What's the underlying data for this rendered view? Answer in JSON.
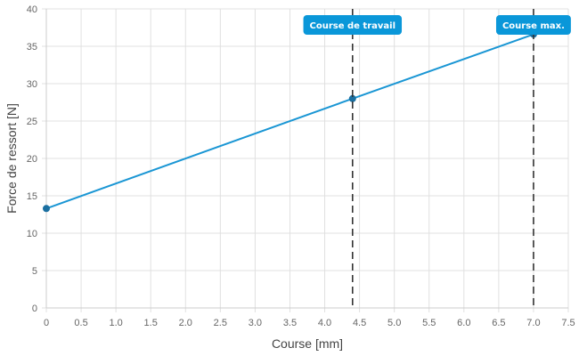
{
  "chart_data": {
    "type": "line",
    "xlabel": "Course [mm]",
    "ylabel": "Force de ressort [N]",
    "xlim": [
      0,
      7.5
    ],
    "ylim": [
      0,
      40
    ],
    "x_ticks": [
      "0",
      "0.5",
      "1.0",
      "1.5",
      "2.0",
      "2.5",
      "3.0",
      "3.5",
      "4.0",
      "4.5",
      "5.0",
      "5.5",
      "6.0",
      "6.5",
      "7.0",
      "7.5"
    ],
    "y_ticks": [
      "0",
      "5",
      "10",
      "15",
      "20",
      "25",
      "30",
      "35",
      "40"
    ],
    "grid": true,
    "series": [
      {
        "x": [
          0,
          4.4,
          7.0
        ],
        "y": [
          13.3,
          28.0,
          36.6
        ],
        "color": "#1a96d4"
      }
    ],
    "markers": [
      {
        "x": 4.4,
        "label": "Course de travail"
      },
      {
        "x": 7.0,
        "label": "Course max."
      }
    ],
    "colors": {
      "line": "#1a96d4",
      "point": "#1a6fa0",
      "marker_label_bg": "#0a97d9",
      "marker_line": "#333333",
      "grid": "#e0e0e0"
    }
  }
}
